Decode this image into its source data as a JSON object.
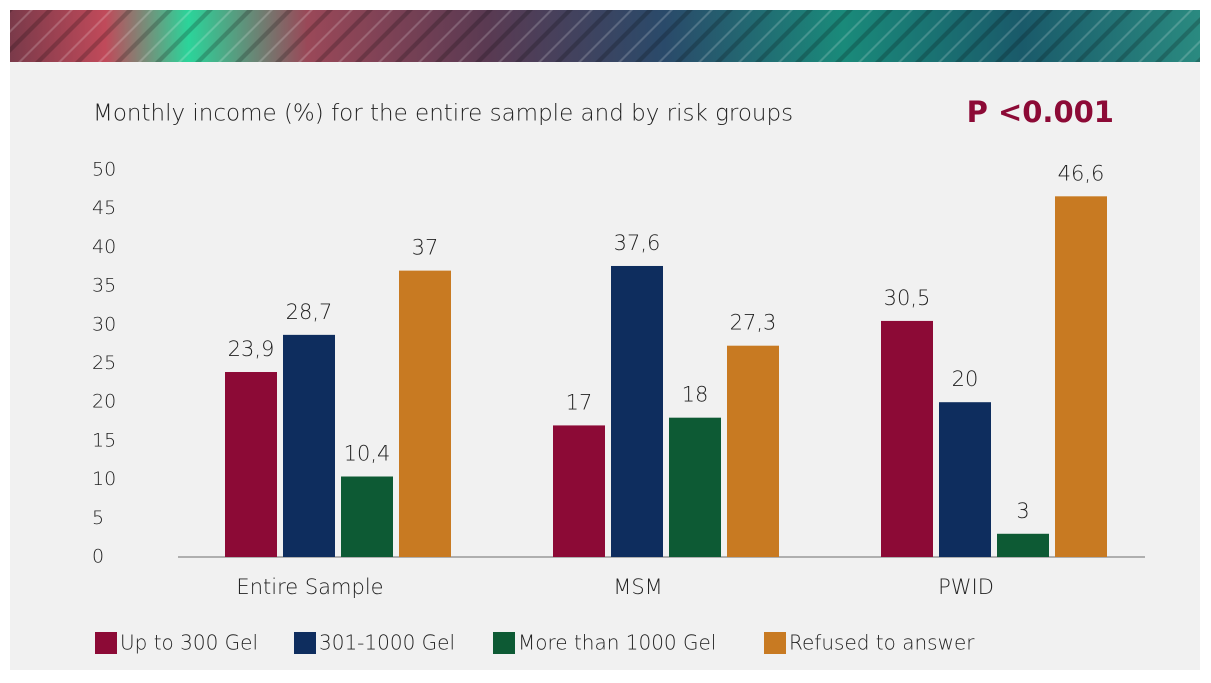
{
  "chart_data": {
    "type": "bar",
    "title": "Monthly income (%) for the entire sample and by risk groups",
    "annotation": "P <0.001",
    "categories": [
      "Entire Sample",
      "MSM",
      "PWID"
    ],
    "series": [
      {
        "name": "Up to 300 Gel",
        "color": "#8c0a36",
        "values": [
          23.9,
          17,
          30.5
        ],
        "value_labels": [
          "23,9",
          "17",
          "30,5"
        ]
      },
      {
        "name": "301-1000 Gel",
        "color": "#0e2d5e",
        "values": [
          28.7,
          37.6,
          20
        ],
        "value_labels": [
          "28,7",
          "37,6",
          "20"
        ]
      },
      {
        "name": "More than 1000 Gel",
        "color": "#0d5a34",
        "values": [
          10.4,
          18,
          3
        ],
        "value_labels": [
          "10,4",
          "18",
          "3"
        ]
      },
      {
        "name": "Refused to answer",
        "color": "#c87a22",
        "values": [
          37,
          27.3,
          46.6
        ],
        "value_labels": [
          "37",
          "27,3",
          "46,6"
        ]
      }
    ],
    "ylim": [
      0,
      50
    ],
    "yticks": [
      0,
      5,
      10,
      15,
      20,
      25,
      30,
      35,
      40,
      45,
      50
    ],
    "grid": false
  }
}
